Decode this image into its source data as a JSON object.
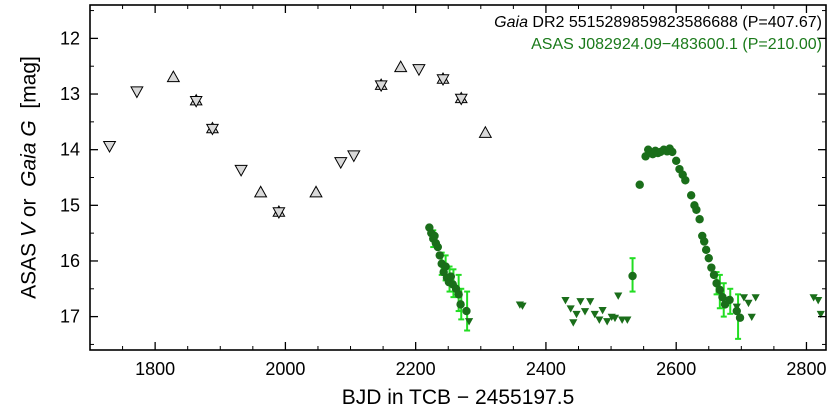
{
  "chart_data": {
    "type": "scatter",
    "xlabel": "BJD in TCB − 2455197.5",
    "ylabel": {
      "parts": [
        {
          "text": "ASAS ",
          "italic": false
        },
        {
          "text": "V",
          "italic": true
        },
        {
          "text": " or  ",
          "italic": false
        },
        {
          "text": "Gaia G",
          "italic": true
        },
        {
          "text": "  [mag]",
          "italic": false
        }
      ]
    },
    "xlim": [
      1700,
      2830
    ],
    "ylim": [
      17.6,
      11.4
    ],
    "y_inverted": true,
    "xticks": [
      1800,
      2000,
      2200,
      2400,
      2600,
      2800
    ],
    "xtick_labels": [
      "1800",
      "2000",
      "2200",
      "2400",
      "2600",
      "2800"
    ],
    "yticks": [
      12,
      13,
      14,
      15,
      16,
      17
    ],
    "ytick_labels": [
      "12",
      "13",
      "14",
      "15",
      "16",
      "17"
    ],
    "grid": false,
    "legend_position": "top-right",
    "legend": [
      {
        "parts": [
          {
            "text": "Gaia",
            "italic": true
          },
          {
            "text": " DR2 5515289859823586688 (P=407.67)",
            "italic": false
          }
        ],
        "color": "#000000"
      },
      {
        "parts": [
          {
            "text": "ASAS J082924.09−483600.1 (P=210.00)",
            "italic": false
          }
        ],
        "color": "#1a7a1a"
      }
    ],
    "series": [
      {
        "marker": "triangle-down",
        "fill": "#d9d9d9",
        "stroke": "#000000",
        "points": [
          {
            "x": 1730,
            "y": 13.93
          },
          {
            "x": 1772,
            "y": 12.95
          },
          {
            "x": 1932,
            "y": 14.36
          },
          {
            "x": 2085,
            "y": 14.22
          },
          {
            "x": 2105,
            "y": 14.1
          },
          {
            "x": 2205,
            "y": 12.55
          }
        ]
      },
      {
        "marker": "triangle-up",
        "fill": "#d9d9d9",
        "stroke": "#000000",
        "points": [
          {
            "x": 1828,
            "y": 12.7
          },
          {
            "x": 1962,
            "y": 14.77
          },
          {
            "x": 2047,
            "y": 14.77
          },
          {
            "x": 2177,
            "y": 12.52
          },
          {
            "x": 2307,
            "y": 13.7
          }
        ]
      },
      {
        "marker": "star",
        "fill": "#d9d9d9",
        "stroke": "#000000",
        "points": [
          {
            "x": 1863,
            "y": 13.12
          },
          {
            "x": 1888,
            "y": 13.62
          },
          {
            "x": 1990,
            "y": 15.12
          },
          {
            "x": 2147,
            "y": 12.84
          },
          {
            "x": 2242,
            "y": 12.73
          },
          {
            "x": 2270,
            "y": 13.08
          }
        ]
      },
      {
        "marker": "circle",
        "fill": "#1a6e1a",
        "stroke": "#1a6e1a",
        "points": [
          {
            "x": 2221,
            "y": 15.4
          },
          {
            "x": 2224,
            "y": 15.5
          },
          {
            "x": 2227,
            "y": 15.6
          },
          {
            "x": 2229,
            "y": 15.55
          },
          {
            "x": 2231,
            "y": 15.68
          },
          {
            "x": 2234,
            "y": 15.75
          },
          {
            "x": 2237,
            "y": 15.9
          },
          {
            "x": 2240,
            "y": 16.05
          },
          {
            "x": 2243,
            "y": 16.2
          },
          {
            "x": 2246,
            "y": 16.1
          },
          {
            "x": 2248,
            "y": 16.3
          },
          {
            "x": 2251,
            "y": 16.38
          },
          {
            "x": 2254,
            "y": 16.28
          },
          {
            "x": 2257,
            "y": 16.42
          },
          {
            "x": 2262,
            "y": 16.5
          },
          {
            "x": 2266,
            "y": 16.6
          },
          {
            "x": 2269,
            "y": 16.78
          },
          {
            "x": 2278,
            "y": 16.9
          },
          {
            "x": 2533,
            "y": 16.27
          },
          {
            "x": 2544,
            "y": 14.63
          },
          {
            "x": 2553,
            "y": 14.12
          },
          {
            "x": 2557,
            "y": 14.0
          },
          {
            "x": 2560,
            "y": 14.05
          },
          {
            "x": 2564,
            "y": 14.08
          },
          {
            "x": 2568,
            "y": 14.02
          },
          {
            "x": 2572,
            "y": 14.06
          },
          {
            "x": 2576,
            "y": 14.04
          },
          {
            "x": 2581,
            "y": 14.0
          },
          {
            "x": 2586,
            "y": 14.03
          },
          {
            "x": 2590,
            "y": 13.98
          },
          {
            "x": 2594,
            "y": 14.04
          },
          {
            "x": 2600,
            "y": 14.2
          },
          {
            "x": 2605,
            "y": 14.35
          },
          {
            "x": 2610,
            "y": 14.45
          },
          {
            "x": 2614,
            "y": 14.55
          },
          {
            "x": 2623,
            "y": 14.82
          },
          {
            "x": 2628,
            "y": 15.0
          },
          {
            "x": 2631,
            "y": 15.08
          },
          {
            "x": 2636,
            "y": 15.25
          },
          {
            "x": 2640,
            "y": 15.55
          },
          {
            "x": 2643,
            "y": 15.65
          },
          {
            "x": 2646,
            "y": 15.8
          },
          {
            "x": 2650,
            "y": 15.95
          },
          {
            "x": 2654,
            "y": 16.12
          },
          {
            "x": 2658,
            "y": 16.25
          },
          {
            "x": 2662,
            "y": 16.4
          },
          {
            "x": 2667,
            "y": 16.52
          },
          {
            "x": 2671,
            "y": 16.65
          },
          {
            "x": 2675,
            "y": 16.78
          },
          {
            "x": 2682,
            "y": 16.7
          },
          {
            "x": 2693,
            "y": 16.9
          },
          {
            "x": 2698,
            "y": 17.02
          }
        ]
      },
      {
        "marker": "triangle-down-small",
        "fill": "#1a6e1a",
        "stroke": "#1a6e1a",
        "points": [
          {
            "x": 2282,
            "y": 17.08
          },
          {
            "x": 2360,
            "y": 16.78
          },
          {
            "x": 2364,
            "y": 16.8
          },
          {
            "x": 2430,
            "y": 16.7
          },
          {
            "x": 2438,
            "y": 16.85
          },
          {
            "x": 2442,
            "y": 17.1
          },
          {
            "x": 2447,
            "y": 16.95
          },
          {
            "x": 2453,
            "y": 16.72
          },
          {
            "x": 2460,
            "y": 16.9
          },
          {
            "x": 2468,
            "y": 16.72
          },
          {
            "x": 2475,
            "y": 16.95
          },
          {
            "x": 2482,
            "y": 17.05
          },
          {
            "x": 2487,
            "y": 16.88
          },
          {
            "x": 2494,
            "y": 17.08
          },
          {
            "x": 2501,
            "y": 17.0
          },
          {
            "x": 2506,
            "y": 17.02
          },
          {
            "x": 2511,
            "y": 16.62
          },
          {
            "x": 2517,
            "y": 17.05
          },
          {
            "x": 2525,
            "y": 17.05
          },
          {
            "x": 2693,
            "y": 16.82
          },
          {
            "x": 2704,
            "y": 16.65
          },
          {
            "x": 2711,
            "y": 16.75
          },
          {
            "x": 2716,
            "y": 17.0
          },
          {
            "x": 2722,
            "y": 16.65
          },
          {
            "x": 2811,
            "y": 16.65
          },
          {
            "x": 2818,
            "y": 16.7
          },
          {
            "x": 2822,
            "y": 16.95
          }
        ]
      }
    ],
    "errorbars": {
      "color": "#22dd22",
      "items": [
        {
          "x": 2227,
          "y_low": 15.45,
          "y_high": 15.75
        },
        {
          "x": 2240,
          "y_low": 15.85,
          "y_high": 16.25
        },
        {
          "x": 2246,
          "y_low": 15.9,
          "y_high": 16.35
        },
        {
          "x": 2252,
          "y_low": 16.1,
          "y_high": 16.55
        },
        {
          "x": 2258,
          "y_low": 16.15,
          "y_high": 16.65
        },
        {
          "x": 2266,
          "y_low": 16.25,
          "y_high": 16.9
        },
        {
          "x": 2270,
          "y_low": 16.5,
          "y_high": 17.05
        },
        {
          "x": 2279,
          "y_low": 16.55,
          "y_high": 17.25
        },
        {
          "x": 2533,
          "y_low": 15.95,
          "y_high": 16.55
        },
        {
          "x": 2662,
          "y_low": 16.2,
          "y_high": 16.6
        },
        {
          "x": 2667,
          "y_low": 16.25,
          "y_high": 16.85
        },
        {
          "x": 2673,
          "y_low": 16.4,
          "y_high": 17.0
        },
        {
          "x": 2683,
          "y_low": 16.5,
          "y_high": 16.95
        },
        {
          "x": 2695,
          "y_low": 16.6,
          "y_high": 17.4
        }
      ]
    }
  }
}
